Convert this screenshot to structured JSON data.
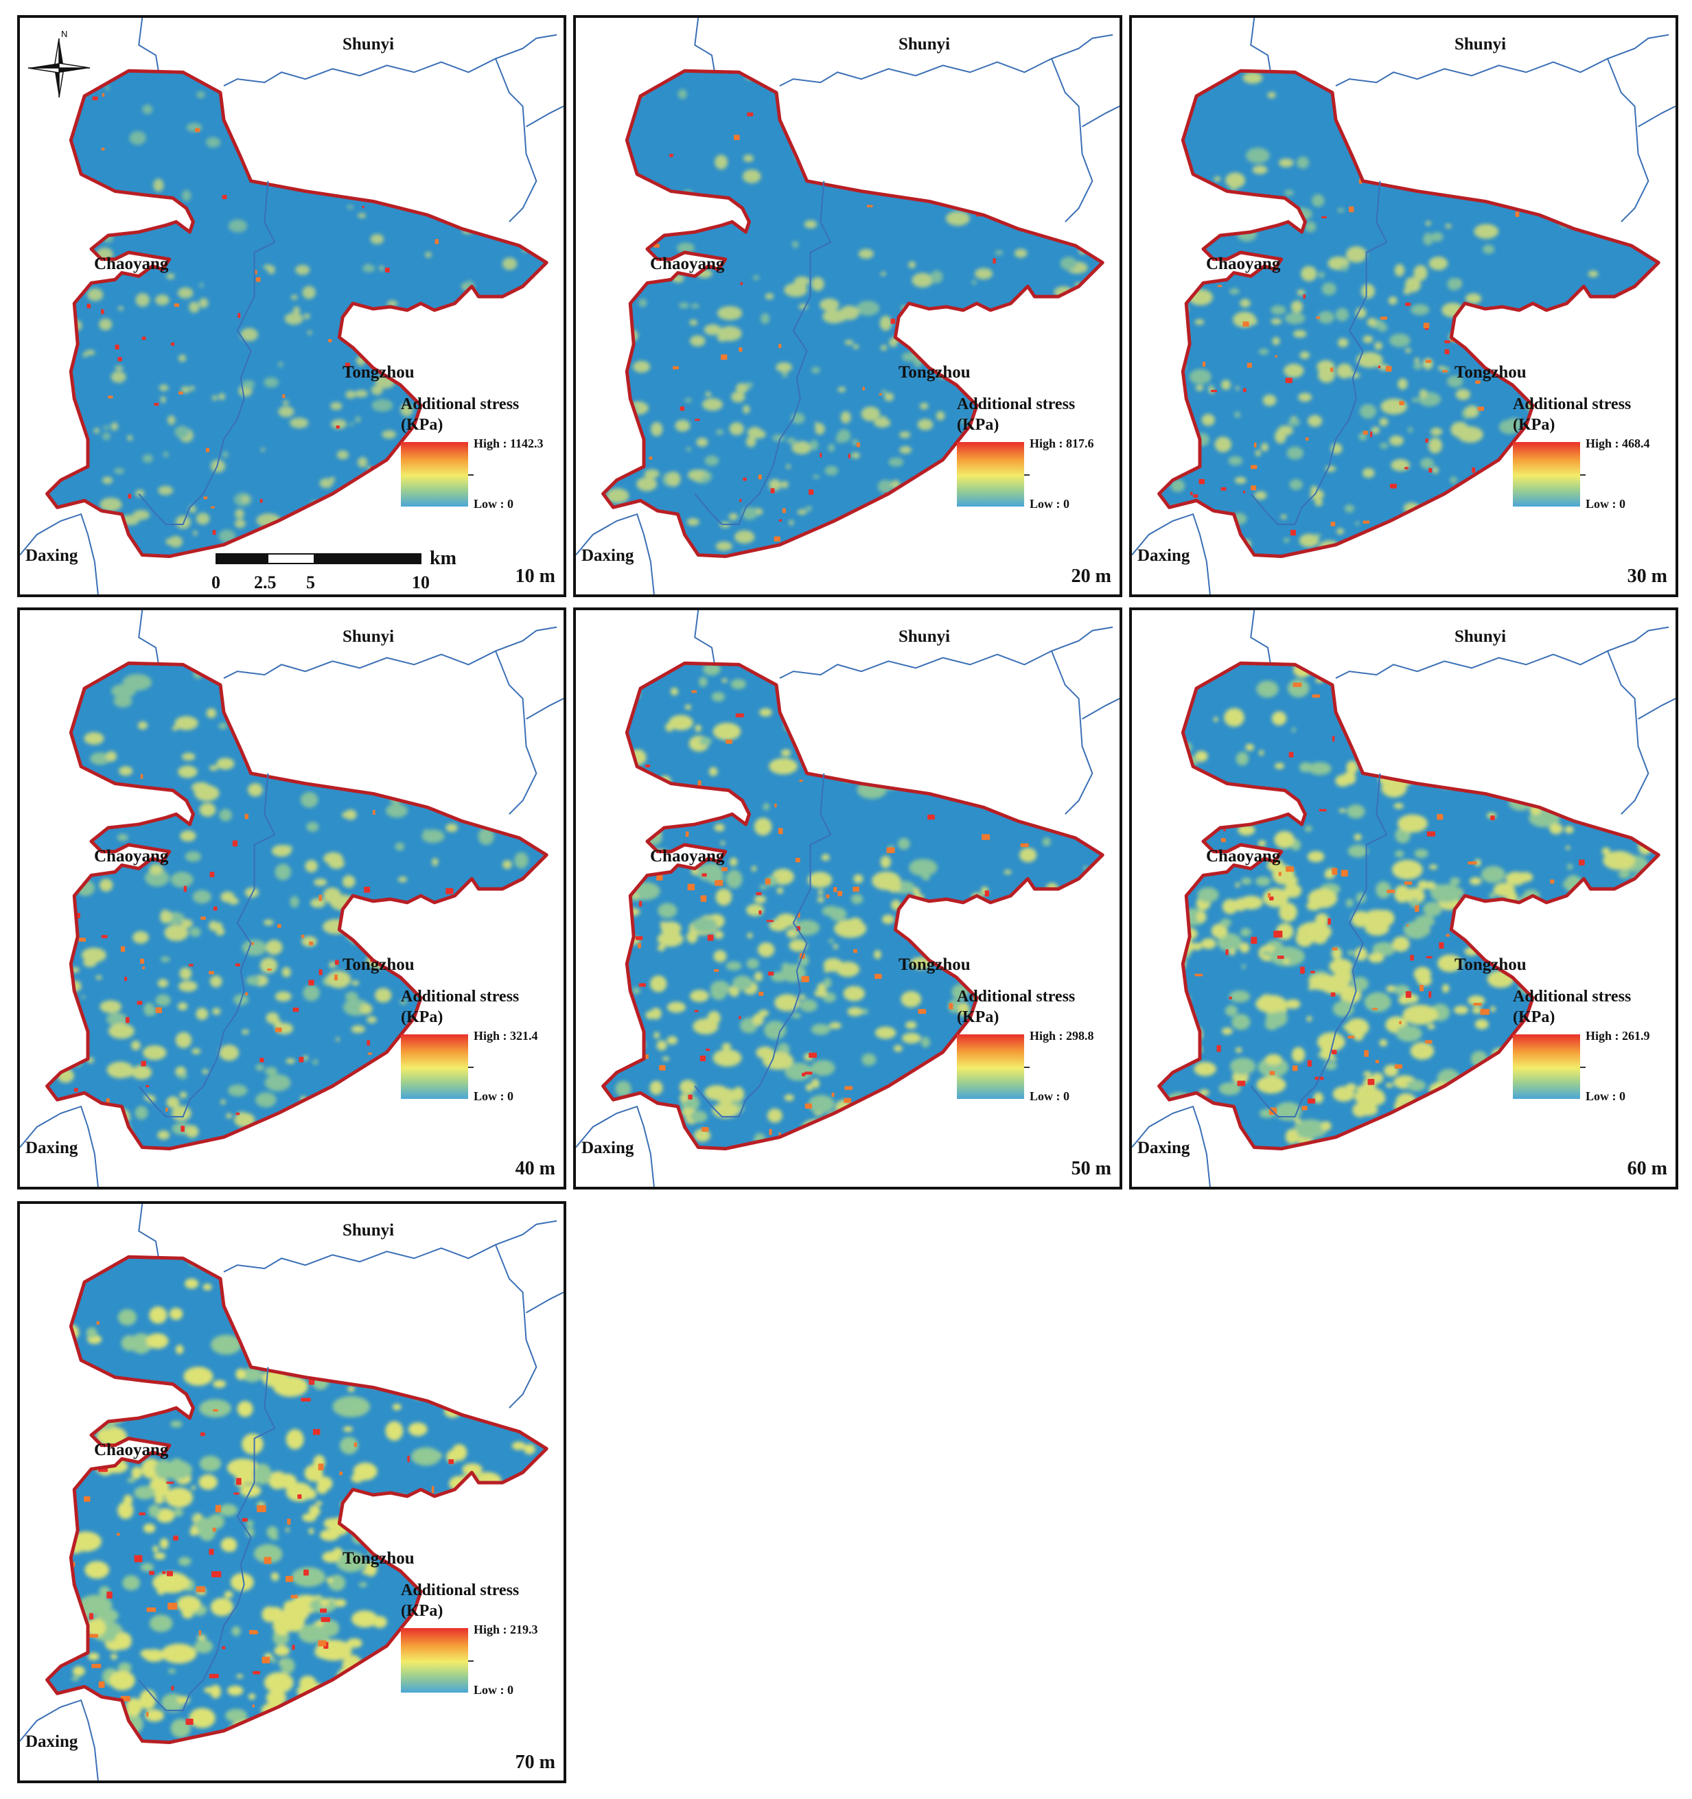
{
  "map": {
    "places": {
      "north": "Shunyi",
      "west": "Chaoyang",
      "center": "Tongzhou",
      "southwest": "Daxing"
    },
    "legend_title_line1": "Additional stress",
    "legend_title_line2": "(KPa)",
    "low_label": "Low : 0",
    "north_arrow_label": "N",
    "scale": {
      "unit": "km",
      "ticks": [
        "0",
        "2.5",
        "5",
        "10"
      ]
    },
    "colors": {
      "background": "#2f8fc9",
      "boundary": "#b81f24",
      "rivers": "#3a6fb5",
      "low": "#4aa6d6",
      "mid": "#f3ec6a",
      "high": "#e8302a"
    }
  },
  "panels": [
    {
      "depth": "10 m",
      "high_label": "High : 1142.3",
      "hotspot_level": 0.25
    },
    {
      "depth": "20 m",
      "high_label": "High : 817.6",
      "hotspot_level": 0.35
    },
    {
      "depth": "30 m",
      "high_label": "High : 468.4",
      "hotspot_level": 0.45
    },
    {
      "depth": "40 m",
      "high_label": "High : 321.4",
      "hotspot_level": 0.55
    },
    {
      "depth": "50 m",
      "high_label": "High : 298.8",
      "hotspot_level": 0.65
    },
    {
      "depth": "60 m",
      "high_label": "High : 261.9",
      "hotspot_level": 0.75
    },
    {
      "depth": "70 m",
      "high_label": "High : 219.3",
      "hotspot_level": 0.85
    }
  ]
}
